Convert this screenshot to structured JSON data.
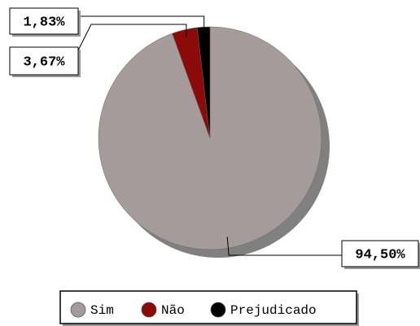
{
  "chart_data": {
    "type": "pie",
    "categories": [
      "Sim",
      "Não",
      "Prejudicado"
    ],
    "values": [
      94.5,
      3.67,
      1.83
    ],
    "value_labels": [
      "94,50%",
      "3,67%",
      "1,83%"
    ],
    "colors": [
      "#a59b9b",
      "#8b0a0a",
      "#000000"
    ],
    "legend": "bottom"
  }
}
